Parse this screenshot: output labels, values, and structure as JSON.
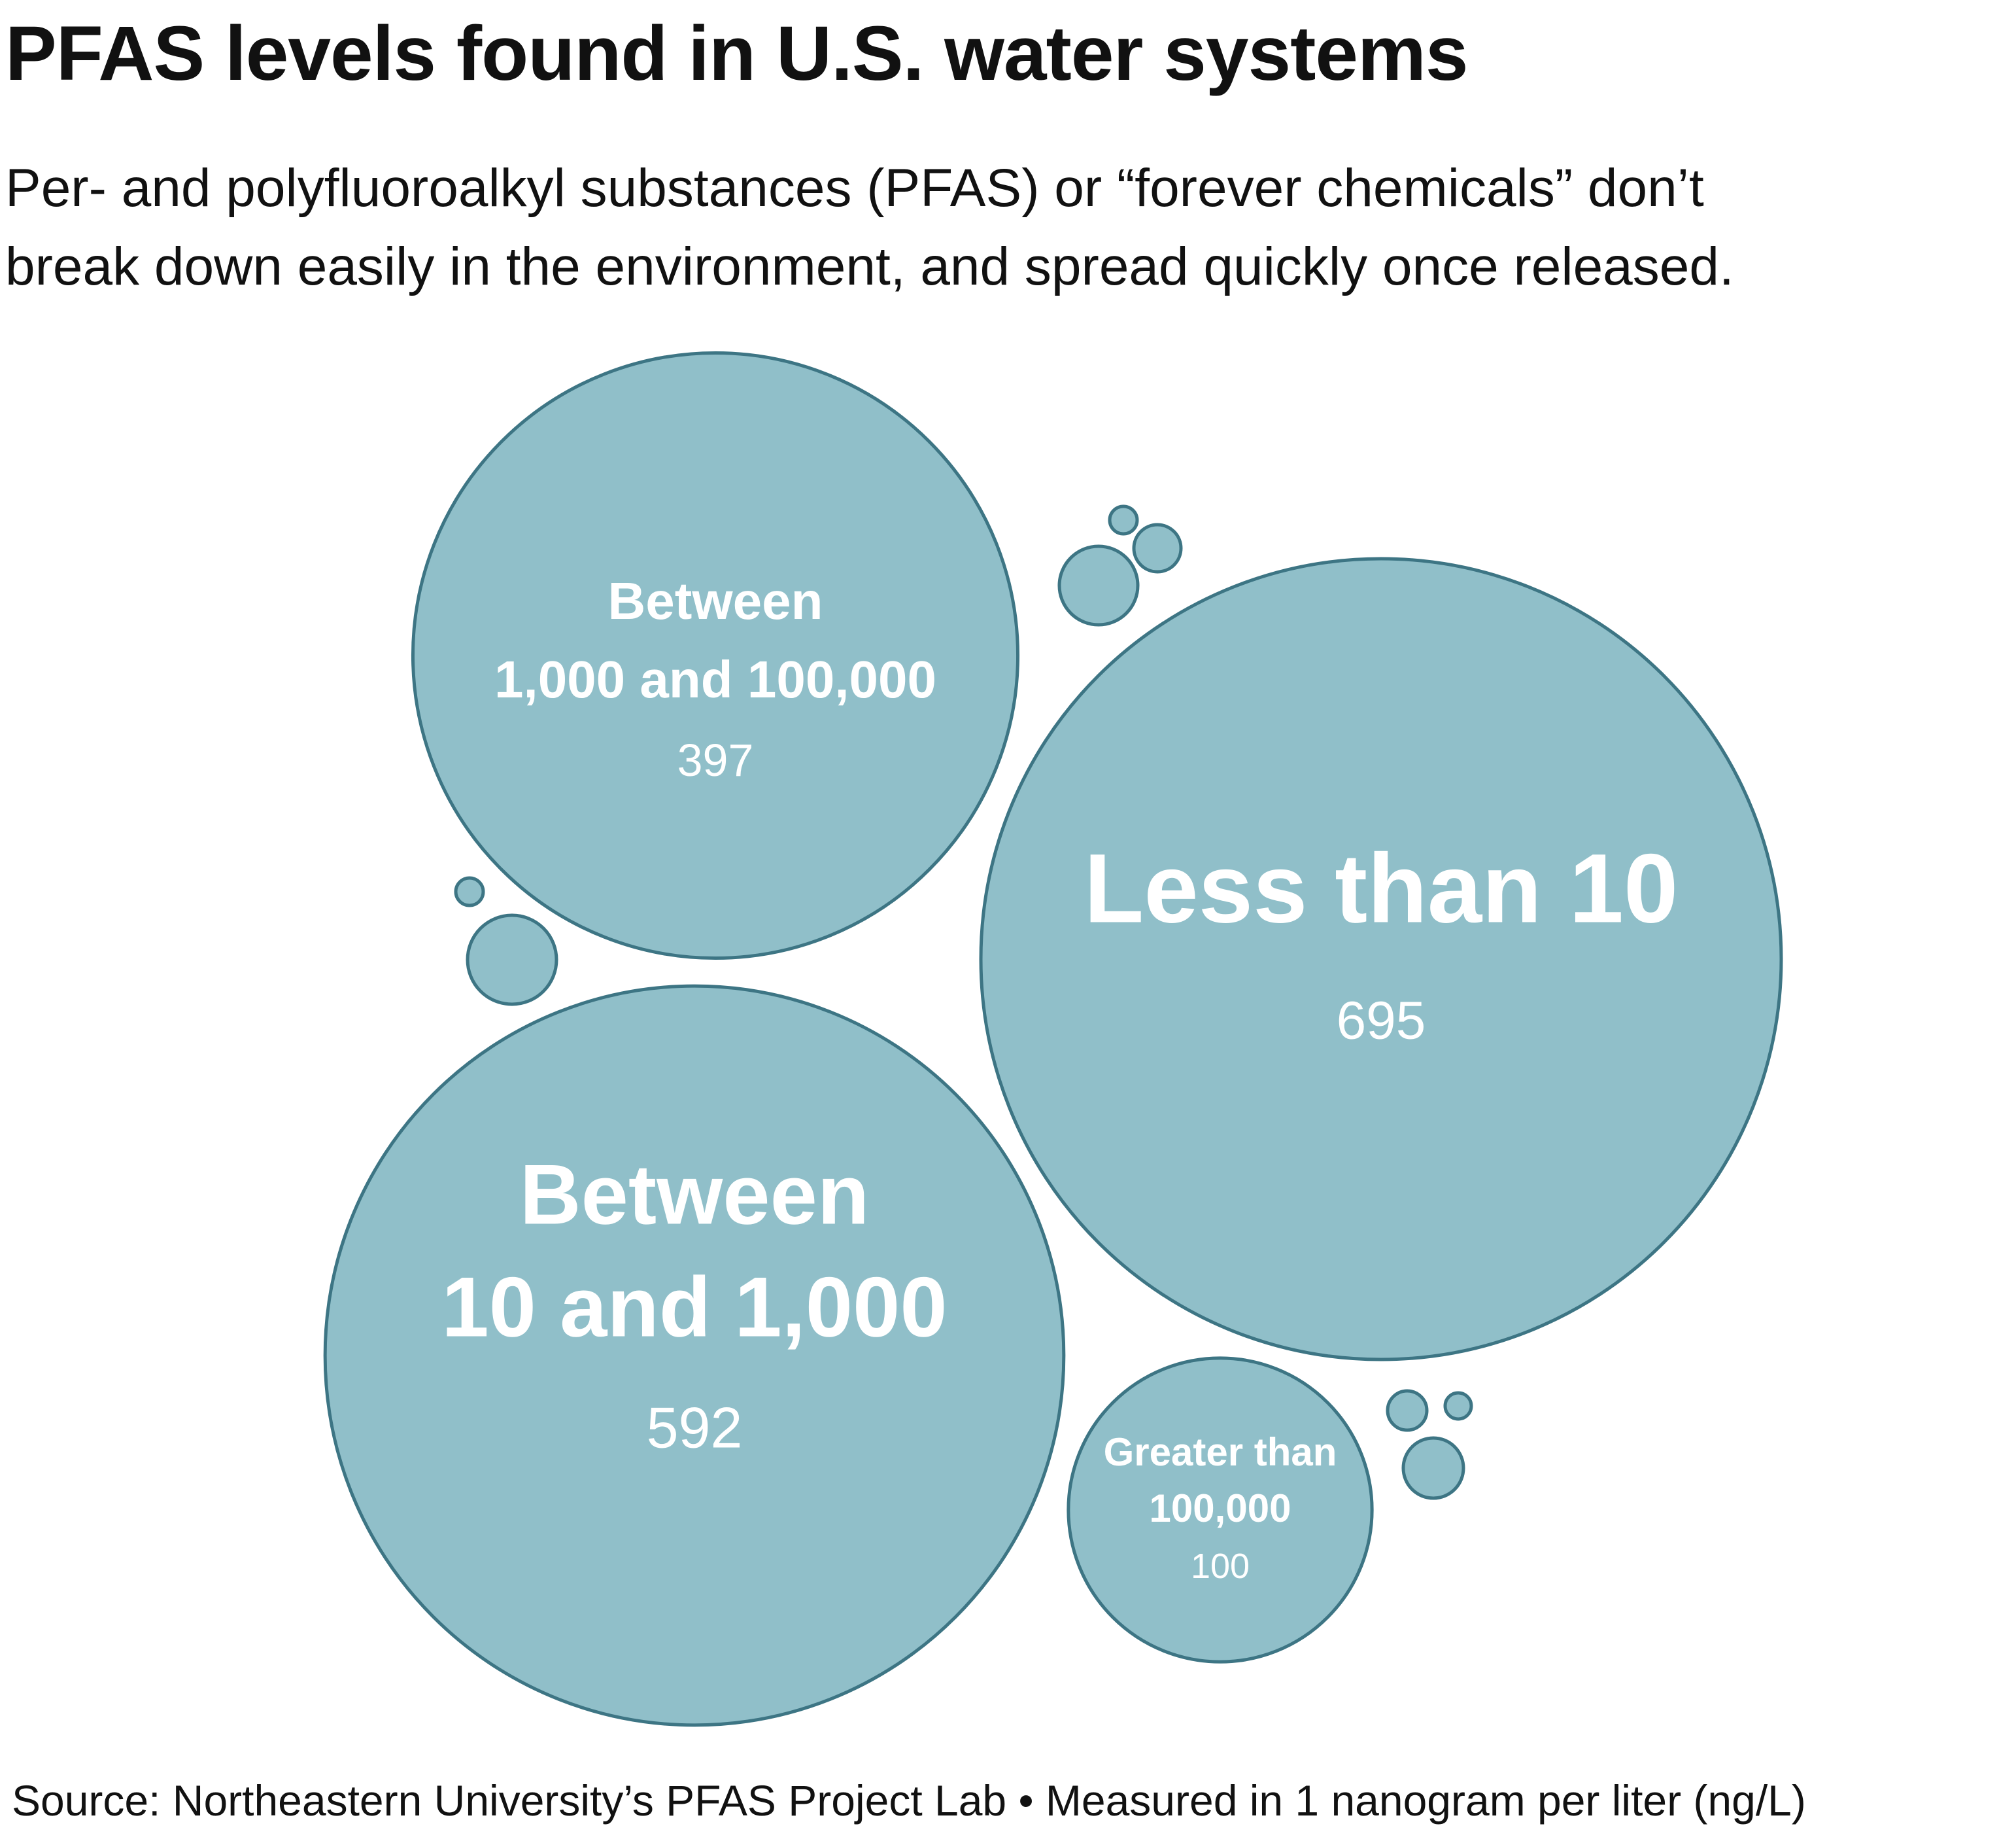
{
  "header": {
    "title": "PFAS levels found in U.S. water systems",
    "subtitle_lines": [
      "Per- and polyfluoroalkyl substances (PFAS) or “forever chemicals” don’t",
      "break down easily in the environment, and spread quickly once released."
    ]
  },
  "footer": {
    "source": "Source: Northeastern University’s PFAS Project Lab • Measured in 1 nanogram per liter (ng/L)"
  },
  "colors": {
    "bubble_fill": "#90bfc9",
    "bubble_stroke": "#3d7584",
    "label_text": "#ffffff"
  },
  "chart_data": {
    "type": "bubble",
    "title": "PFAS levels found in U.S. water systems",
    "unit": "ng/L",
    "bubbles": [
      {
        "label_lines": [
          "Less than 10"
        ],
        "value": 695
      },
      {
        "label_lines": [
          "Between",
          "10 and 1,000"
        ],
        "value": 592
      },
      {
        "label_lines": [
          "Between",
          "1,000 and 100,000"
        ],
        "value": 397
      },
      {
        "label_lines": [
          "Greater than",
          "100,000"
        ],
        "value": 100
      }
    ]
  }
}
